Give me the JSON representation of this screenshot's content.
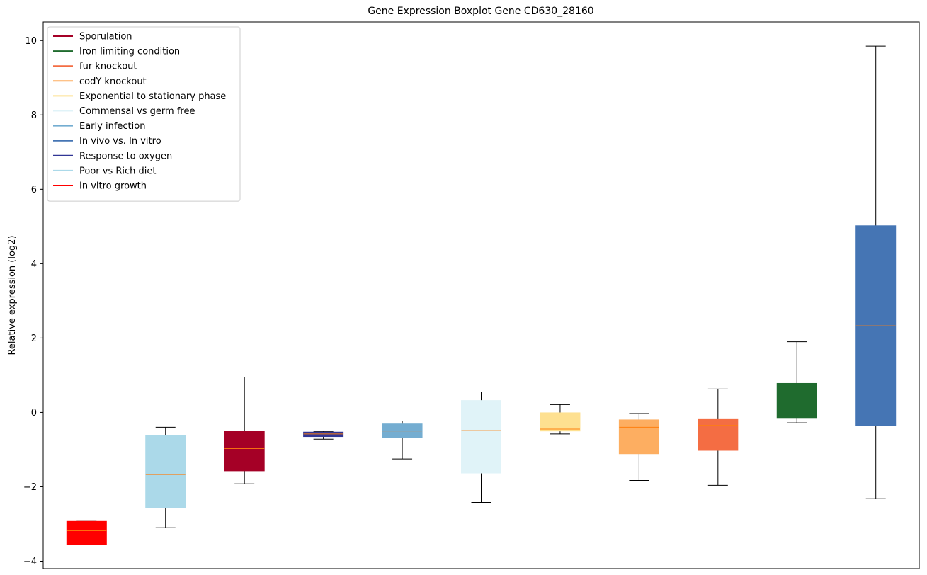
{
  "chart_data": {
    "type": "box",
    "title": "Gene Expression Boxplot Gene CD630_28160",
    "xlabel": "",
    "ylabel": "Relative expression (log2)",
    "ylim": [
      -4.2,
      10.5
    ],
    "yticks": [
      -4,
      -2,
      0,
      2,
      4,
      6,
      8,
      10
    ],
    "ytick_labels": [
      "−4",
      "−2",
      "0",
      "2",
      "4",
      "6",
      "8",
      "10"
    ],
    "median_color": "#ff7f0e",
    "legend_position": "upper-left",
    "legend": [
      {
        "label": "Sporulation",
        "color": "#a50026"
      },
      {
        "label": "Iron limiting condition",
        "color": "#1f6b2e"
      },
      {
        "label": "fur knockout",
        "color": "#f46d43"
      },
      {
        "label": "codY knockout",
        "color": "#fdae61"
      },
      {
        "label": "Exponential to stationary phase",
        "color": "#fee090"
      },
      {
        "label": "Commensal vs germ free",
        "color": "#e0f3f8"
      },
      {
        "label": "Early infection",
        "color": "#74add1"
      },
      {
        "label": "In vivo vs. In vitro",
        "color": "#4575b4"
      },
      {
        "label": "Response to oxygen",
        "color": "#313695"
      },
      {
        "label": "Poor vs Rich diet",
        "color": "#abd9e9"
      },
      {
        "label": "In vitro growth",
        "color": "#ff0000"
      }
    ],
    "boxes": [
      {
        "group": "In vitro growth",
        "color": "#ff0000",
        "whisker_low": -3.55,
        "q1": -3.55,
        "median": -3.18,
        "q3": -2.93,
        "whisker_high": -2.93
      },
      {
        "group": "Poor vs Rich diet",
        "color": "#abd9e9",
        "whisker_low": -3.1,
        "q1": -2.57,
        "median": -1.67,
        "q3": -0.62,
        "whisker_high": -0.4
      },
      {
        "group": "Sporulation",
        "color": "#a50026",
        "whisker_low": -1.92,
        "q1": -1.57,
        "median": -0.97,
        "q3": -0.5,
        "whisker_high": 0.95
      },
      {
        "group": "Response to oxygen",
        "color": "#313695",
        "whisker_low": -0.72,
        "q1": -0.65,
        "median": -0.58,
        "q3": -0.53,
        "whisker_high": -0.51
      },
      {
        "group": "Early infection",
        "color": "#74add1",
        "whisker_low": -1.25,
        "q1": -0.68,
        "median": -0.5,
        "q3": -0.31,
        "whisker_high": -0.23
      },
      {
        "group": "Commensal vs germ free",
        "color": "#e0f3f8",
        "whisker_low": -2.42,
        "q1": -1.63,
        "median": -0.49,
        "q3": 0.32,
        "whisker_high": 0.55
      },
      {
        "group": "Exponential to stationary phase",
        "color": "#fee090",
        "whisker_low": -0.58,
        "q1": -0.5,
        "median": -0.45,
        "q3": -0.01,
        "whisker_high": 0.21
      },
      {
        "group": "codY knockout",
        "color": "#fdae61",
        "whisker_low": -1.83,
        "q1": -1.11,
        "median": -0.4,
        "q3": -0.2,
        "whisker_high": -0.03
      },
      {
        "group": "fur knockout",
        "color": "#f46d43",
        "whisker_low": -1.96,
        "q1": -1.02,
        "median": -0.35,
        "q3": -0.17,
        "whisker_high": 0.63
      },
      {
        "group": "Iron limiting condition",
        "color": "#1f6b2e",
        "whisker_low": -0.28,
        "q1": -0.14,
        "median": 0.36,
        "q3": 0.78,
        "whisker_high": 1.9
      },
      {
        "group": "In vivo vs. In vitro",
        "color": "#4575b4",
        "whisker_low": -2.32,
        "q1": -0.36,
        "median": 2.33,
        "q3": 5.02,
        "whisker_high": 9.85
      }
    ]
  }
}
